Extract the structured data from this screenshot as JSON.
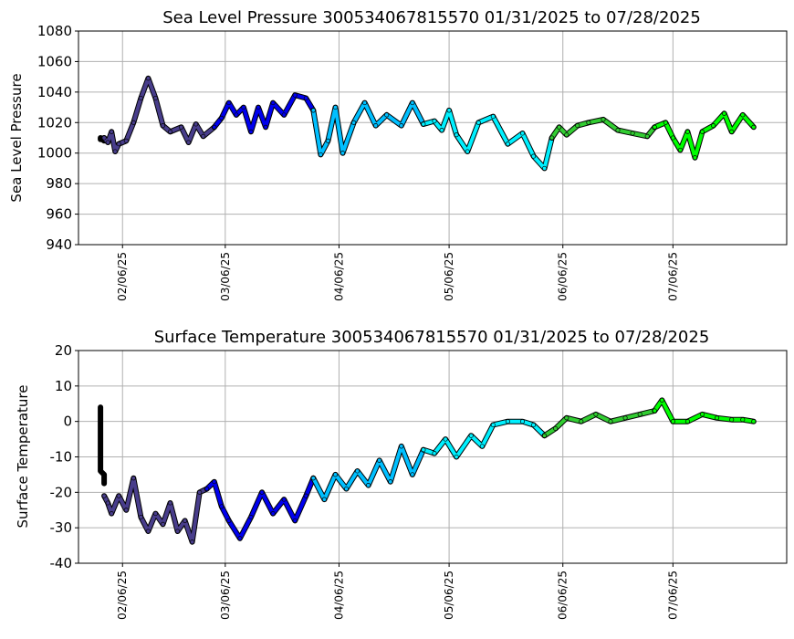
{
  "chart_data": [
    {
      "type": "scatter",
      "title": "Sea Level Pressure 300534067815570  01/31/2025 to 07/28/2025",
      "xlabel": "",
      "ylabel": "Sea Level Pressure",
      "x_tick_labels": [
        "02/06/25",
        "03/06/25",
        "04/06/25",
        "05/06/25",
        "06/06/25",
        "07/06/25"
      ],
      "xlim": [
        "01/25/2025",
        "08/06/2025"
      ],
      "ylim": [
        940,
        1080
      ],
      "y_ticks": [
        940,
        960,
        980,
        1000,
        1020,
        1040,
        1060,
        1080
      ],
      "grid": true,
      "segments": [
        {
          "color": "#000000",
          "points": [
            [
              "01/31/2025",
              1009
            ],
            [
              "01/31/2025",
              1010
            ],
            [
              "02/01/2025",
              1008
            ],
            [
              "02/01/2025",
              1010
            ]
          ]
        },
        {
          "color": "#483d8b",
          "points": [
            [
              "02/01/2025",
              1010
            ],
            [
              "02/02/2025",
              1007
            ],
            [
              "02/03/2025",
              1014
            ],
            [
              "02/04/2025",
              1001
            ],
            [
              "02/05/2025",
              1006
            ],
            [
              "02/07/2025",
              1008
            ],
            [
              "02/09/2025",
              1020
            ],
            [
              "02/11/2025",
              1036
            ],
            [
              "02/13/2025",
              1049
            ],
            [
              "02/15/2025",
              1036
            ],
            [
              "02/17/2025",
              1018
            ],
            [
              "02/19/2025",
              1014
            ],
            [
              "02/22/2025",
              1017
            ],
            [
              "02/24/2025",
              1007
            ],
            [
              "02/26/2025",
              1019
            ],
            [
              "02/28/2025",
              1011
            ],
            [
              "03/03/2025",
              1017
            ]
          ]
        },
        {
          "color": "#0000ee",
          "points": [
            [
              "03/03/2025",
              1017
            ],
            [
              "03/05/2025",
              1023
            ],
            [
              "03/07/2025",
              1033
            ],
            [
              "03/09/2025",
              1025
            ],
            [
              "03/11/2025",
              1030
            ],
            [
              "03/13/2025",
              1014
            ],
            [
              "03/15/2025",
              1030
            ],
            [
              "03/17/2025",
              1017
            ],
            [
              "03/19/2025",
              1033
            ],
            [
              "03/22/2025",
              1025
            ],
            [
              "03/25/2025",
              1038
            ],
            [
              "03/28/2025",
              1036
            ],
            [
              "03/30/2025",
              1028
            ]
          ]
        },
        {
          "color": "#00bfff",
          "points": [
            [
              "03/30/2025",
              1028
            ],
            [
              "04/01/2025",
              999
            ],
            [
              "04/03/2025",
              1008
            ],
            [
              "04/05/2025",
              1030
            ],
            [
              "04/07/2025",
              1000
            ],
            [
              "04/10/2025",
              1020
            ],
            [
              "04/13/2025",
              1033
            ],
            [
              "04/16/2025",
              1018
            ],
            [
              "04/19/2025",
              1025
            ],
            [
              "04/23/2025",
              1018
            ],
            [
              "04/26/2025",
              1033
            ],
            [
              "04/29/2025",
              1019
            ]
          ]
        },
        {
          "color": "#00f0ff",
          "points": [
            [
              "04/29/2025",
              1019
            ],
            [
              "05/02/2025",
              1021
            ],
            [
              "05/04/2025",
              1015
            ],
            [
              "05/06/2025",
              1028
            ],
            [
              "05/08/2025",
              1012
            ],
            [
              "05/11/2025",
              1001
            ],
            [
              "05/14/2025",
              1020
            ],
            [
              "05/18/2025",
              1024
            ],
            [
              "05/22/2025",
              1006
            ],
            [
              "05/26/2025",
              1013
            ],
            [
              "05/29/2025",
              998
            ],
            [
              "06/01/2025",
              990
            ],
            [
              "06/03/2025",
              1010
            ]
          ]
        },
        {
          "color": "#32cd32",
          "points": [
            [
              "06/03/2025",
              1010
            ],
            [
              "06/05/2025",
              1017
            ],
            [
              "06/07/2025",
              1012
            ],
            [
              "06/10/2025",
              1018
            ],
            [
              "06/13/2025",
              1020
            ],
            [
              "06/17/2025",
              1022
            ],
            [
              "06/21/2025",
              1015
            ],
            [
              "06/25/2025",
              1013
            ],
            [
              "06/29/2025",
              1011
            ],
            [
              "07/01/2025",
              1017
            ]
          ]
        },
        {
          "color": "#00ff00",
          "points": [
            [
              "07/01/2025",
              1017
            ],
            [
              "07/04/2025",
              1020
            ],
            [
              "07/06/2025",
              1010
            ],
            [
              "07/08/2025",
              1002
            ],
            [
              "07/10/2025",
              1014
            ],
            [
              "07/12/2025",
              997
            ],
            [
              "07/14/2025",
              1014
            ],
            [
              "07/17/2025",
              1018
            ],
            [
              "07/20/2025",
              1026
            ],
            [
              "07/22/2025",
              1014
            ],
            [
              "07/25/2025",
              1025
            ],
            [
              "07/28/2025",
              1017
            ]
          ]
        }
      ]
    },
    {
      "type": "scatter",
      "title": "Surface Temperature 300534067815570  01/31/2025 to 07/28/2025",
      "xlabel": "",
      "ylabel": "Surface Temperature",
      "x_tick_labels": [
        "02/06/25",
        "03/06/25",
        "04/06/25",
        "05/06/25",
        "06/06/25",
        "07/06/25"
      ],
      "xlim": [
        "01/25/2025",
        "08/06/2025"
      ],
      "ylim": [
        -40,
        20
      ],
      "y_ticks": [
        -40,
        -30,
        -20,
        -10,
        0,
        10,
        20
      ],
      "grid": true,
      "segments": [
        {
          "color": "#000000",
          "points": [
            [
              "01/31/2025",
              4
            ],
            [
              "01/31/2025",
              -6.5
            ],
            [
              "01/31/2025",
              -10
            ],
            [
              "01/31/2025",
              -12
            ],
            [
              "01/31/2025",
              -14
            ],
            [
              "02/01/2025",
              -15
            ],
            [
              "02/01/2025",
              -16
            ],
            [
              "02/01/2025",
              -17.5
            ]
          ]
        },
        {
          "color": "#483d8b",
          "points": [
            [
              "02/01/2025",
              -21
            ],
            [
              "02/02/2025",
              -23
            ],
            [
              "02/03/2025",
              -26
            ],
            [
              "02/05/2025",
              -21
            ],
            [
              "02/07/2025",
              -25
            ],
            [
              "02/09/2025",
              -16
            ],
            [
              "02/11/2025",
              -27
            ],
            [
              "02/13/2025",
              -31
            ],
            [
              "02/15/2025",
              -26
            ],
            [
              "02/17/2025",
              -29
            ],
            [
              "02/19/2025",
              -23
            ],
            [
              "02/21/2025",
              -31
            ],
            [
              "02/23/2025",
              -28
            ],
            [
              "02/25/2025",
              -34
            ],
            [
              "02/27/2025",
              -20
            ],
            [
              "03/01/2025",
              -19
            ]
          ]
        },
        {
          "color": "#0000ee",
          "points": [
            [
              "03/01/2025",
              -19
            ],
            [
              "03/03/2025",
              -17
            ],
            [
              "03/05/2025",
              -24
            ],
            [
              "03/07/2025",
              -28
            ],
            [
              "03/10/2025",
              -33
            ],
            [
              "03/13/2025",
              -27
            ],
            [
              "03/16/2025",
              -20
            ],
            [
              "03/19/2025",
              -26
            ],
            [
              "03/22/2025",
              -22
            ],
            [
              "03/25/2025",
              -28
            ],
            [
              "03/28/2025",
              -21
            ],
            [
              "03/30/2025",
              -16
            ]
          ]
        },
        {
          "color": "#00bfff",
          "points": [
            [
              "03/30/2025",
              -16
            ],
            [
              "04/02/2025",
              -22
            ],
            [
              "04/05/2025",
              -15
            ],
            [
              "04/08/2025",
              -19
            ],
            [
              "04/11/2025",
              -14
            ],
            [
              "04/14/2025",
              -18
            ],
            [
              "04/17/2025",
              -11
            ],
            [
              "04/20/2025",
              -17
            ],
            [
              "04/23/2025",
              -7
            ],
            [
              "04/26/2025",
              -15
            ],
            [
              "04/29/2025",
              -8
            ]
          ]
        },
        {
          "color": "#00f0ff",
          "points": [
            [
              "04/29/2025",
              -8
            ],
            [
              "05/02/2025",
              -9
            ],
            [
              "05/05/2025",
              -5
            ],
            [
              "05/08/2025",
              -10
            ],
            [
              "05/12/2025",
              -4
            ],
            [
              "05/15/2025",
              -7
            ],
            [
              "05/18/2025",
              -1
            ],
            [
              "05/22/2025",
              0
            ],
            [
              "05/26/2025",
              0
            ],
            [
              "05/29/2025",
              -1
            ],
            [
              "06/01/2025",
              -4
            ]
          ]
        },
        {
          "color": "#32cd32",
          "points": [
            [
              "06/01/2025",
              -4
            ],
            [
              "06/04/2025",
              -2
            ],
            [
              "06/07/2025",
              1
            ],
            [
              "06/11/2025",
              0
            ],
            [
              "06/15/2025",
              2
            ],
            [
              "06/19/2025",
              0
            ],
            [
              "06/23/2025",
              1
            ],
            [
              "06/27/2025",
              2
            ],
            [
              "07/01/2025",
              3
            ]
          ]
        },
        {
          "color": "#00ff00",
          "points": [
            [
              "07/01/2025",
              3
            ],
            [
              "07/03/2025",
              6
            ],
            [
              "07/06/2025",
              0
            ],
            [
              "07/10/2025",
              0
            ],
            [
              "07/14/2025",
              2
            ],
            [
              "07/18/2025",
              1
            ],
            [
              "07/22/2025",
              0.5
            ],
            [
              "07/25/2025",
              0.5
            ],
            [
              "07/28/2025",
              0
            ]
          ]
        }
      ]
    }
  ]
}
